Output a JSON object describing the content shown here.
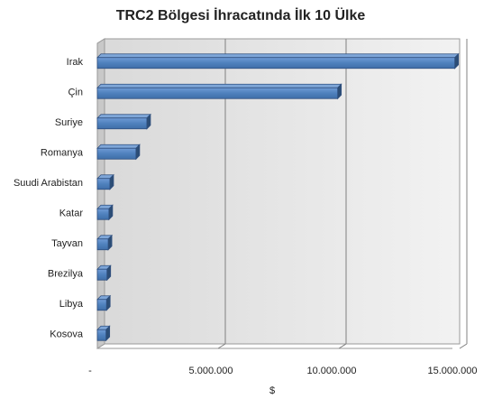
{
  "chart_data": {
    "type": "bar",
    "orientation": "horizontal",
    "title": "TRC2 Bölgesi İhracatında İlk 10 Ülke",
    "xlabel": "$",
    "ylabel": "",
    "categories": [
      "Irak",
      "Çin",
      "Suriye",
      "Romanya",
      "Suudi Arabistan",
      "Katar",
      "Tayvan",
      "Brezilya",
      "Libya",
      "Kosova"
    ],
    "values": [
      14800000,
      9950000,
      2050000,
      1600000,
      520000,
      480000,
      450000,
      400000,
      380000,
      360000
    ],
    "xlim": [
      0,
      15000000
    ],
    "x_ticks": [
      0,
      5000000,
      10000000,
      15000000
    ],
    "x_tick_labels": [
      "-",
      "5.000.000",
      "10.000.000",
      "15.000.000"
    ],
    "grid": "vertical",
    "legend": "none",
    "style": "3d",
    "colors": {
      "bar_front": "#4f81bd",
      "bar_top": "#7ea6d8",
      "bar_side": "#2c4d75",
      "bar_stroke": "#2f4f7f",
      "plot_back": "#e6e6e6",
      "plot_side": "#c8c8c8",
      "gridline": "#808080"
    }
  }
}
